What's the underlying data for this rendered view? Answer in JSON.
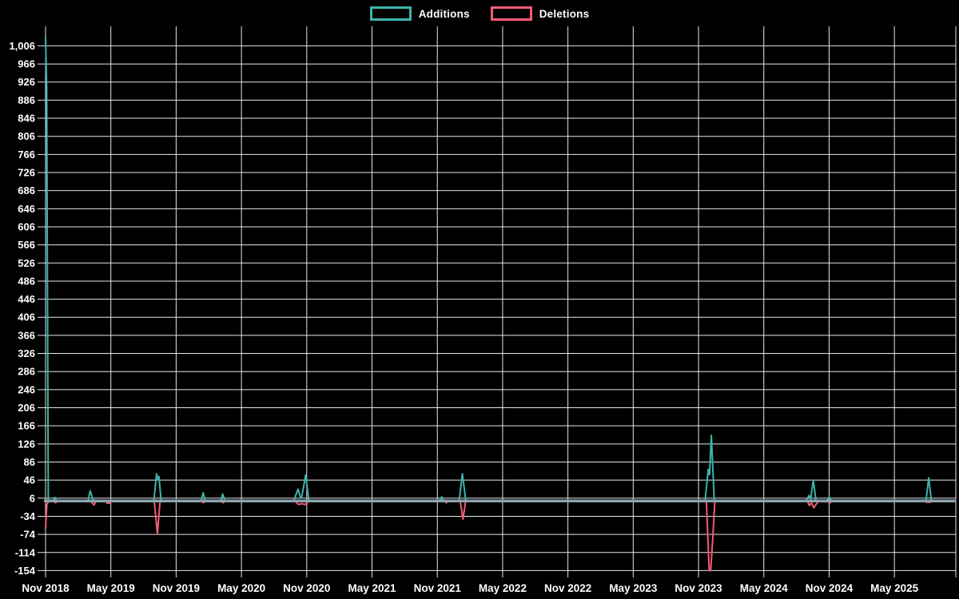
{
  "legend": {
    "items": [
      {
        "label": "Additions",
        "color": "#3cb4ad"
      },
      {
        "label": "Deletions",
        "color": "#f25c77"
      }
    ]
  },
  "chart_data": {
    "type": "line",
    "title": "",
    "background": "#000000",
    "grid": true,
    "grid_color": "#e3e8e8",
    "zero_line_color": "#8ca5af",
    "text_color": "#ffffff",
    "legend_position": "top-center",
    "x_axis": {
      "unit": "months since Nov 2018",
      "tick_months": [
        0,
        6,
        12,
        18,
        24,
        30,
        36,
        42,
        48,
        54,
        60,
        66,
        72,
        78
      ],
      "tick_labels": [
        "Nov 2018",
        "May 2019",
        "Nov 2019",
        "May 2020",
        "Nov 2020",
        "May 2021",
        "Nov 2021",
        "May 2022",
        "Nov 2022",
        "May 2023",
        "Nov 2023",
        "May 2024",
        "Nov 2024",
        "May 2025"
      ],
      "end_month": 83.66
    },
    "y_axis": {
      "min_tick": -154,
      "max_tick": 1006,
      "tick_step": 40,
      "tick_labels": [
        "-154",
        "-114",
        "-74",
        "-34",
        "6",
        "46",
        "86",
        "126",
        "166",
        "206",
        "246",
        "286",
        "326",
        "366",
        "406",
        "446",
        "486",
        "526",
        "566",
        "606",
        "646",
        "686",
        "726",
        "766",
        "806",
        "846",
        "886",
        "926",
        "966",
        "1,006"
      ],
      "data_min": -154,
      "data_max": 1026
    },
    "series": [
      {
        "name": "Additions",
        "color": "#3cb4ad",
        "points": [
          [
            0,
            1026
          ],
          [
            0.1,
            913
          ],
          [
            0.25,
            0
          ],
          [
            0.72,
            0
          ],
          [
            0.85,
            8
          ],
          [
            1.0,
            0
          ],
          [
            3.9,
            0
          ],
          [
            4.1,
            22
          ],
          [
            4.4,
            0
          ],
          [
            9.95,
            0
          ],
          [
            10.2,
            60
          ],
          [
            10.32,
            47
          ],
          [
            10.42,
            54
          ],
          [
            10.62,
            0
          ],
          [
            14.3,
            0
          ],
          [
            14.48,
            18
          ],
          [
            14.68,
            0
          ],
          [
            16.1,
            0
          ],
          [
            16.28,
            15
          ],
          [
            16.48,
            0
          ],
          [
            22.8,
            0
          ],
          [
            23.2,
            26
          ],
          [
            23.45,
            6
          ],
          [
            23.55,
            10
          ],
          [
            23.9,
            57
          ],
          [
            24.2,
            0
          ],
          [
            36.2,
            0
          ],
          [
            36.4,
            9
          ],
          [
            36.6,
            0
          ],
          [
            38.0,
            0
          ],
          [
            38.3,
            60
          ],
          [
            38.62,
            0
          ],
          [
            60.6,
            0
          ],
          [
            60.9,
            70
          ],
          [
            61.02,
            58
          ],
          [
            61.18,
            145
          ],
          [
            61.45,
            0
          ],
          [
            69.9,
            0
          ],
          [
            70.15,
            12
          ],
          [
            70.3,
            4
          ],
          [
            70.55,
            46
          ],
          [
            70.8,
            0
          ],
          [
            71.8,
            0
          ],
          [
            72.0,
            9
          ],
          [
            72.2,
            0
          ],
          [
            80.9,
            0
          ],
          [
            81.15,
            51
          ],
          [
            81.4,
            0
          ],
          [
            83.66,
            0
          ]
        ]
      },
      {
        "name": "Deletions",
        "color": "#f25c77",
        "points": [
          [
            0,
            -60
          ],
          [
            0.12,
            -8
          ],
          [
            0.3,
            0
          ],
          [
            0.78,
            0
          ],
          [
            0.92,
            -4
          ],
          [
            1.08,
            0
          ],
          [
            4.0,
            0
          ],
          [
            4.25,
            -3
          ],
          [
            4.45,
            -9
          ],
          [
            4.65,
            0
          ],
          [
            5.55,
            0
          ],
          [
            5.68,
            -5
          ],
          [
            5.95,
            -5
          ],
          [
            6.05,
            0
          ],
          [
            9.98,
            0
          ],
          [
            10.28,
            -73
          ],
          [
            10.52,
            0
          ],
          [
            14.35,
            0
          ],
          [
            14.5,
            -4
          ],
          [
            14.68,
            0
          ],
          [
            16.15,
            0
          ],
          [
            16.3,
            -4
          ],
          [
            16.5,
            0
          ],
          [
            22.9,
            0
          ],
          [
            23.25,
            -8
          ],
          [
            23.55,
            -6
          ],
          [
            23.85,
            -8
          ],
          [
            24.25,
            0
          ],
          [
            36.65,
            0
          ],
          [
            36.82,
            -4
          ],
          [
            37.0,
            0
          ],
          [
            38.1,
            0
          ],
          [
            38.36,
            -40
          ],
          [
            38.6,
            0
          ],
          [
            60.72,
            0
          ],
          [
            60.98,
            -154
          ],
          [
            61.12,
            -154
          ],
          [
            61.3,
            -85
          ],
          [
            61.5,
            0
          ],
          [
            70.0,
            0
          ],
          [
            70.18,
            -10
          ],
          [
            70.38,
            -4
          ],
          [
            70.6,
            -15
          ],
          [
            70.85,
            -6
          ],
          [
            71.05,
            0
          ],
          [
            71.85,
            0
          ],
          [
            72.05,
            -5
          ],
          [
            72.25,
            0
          ],
          [
            80.85,
            0
          ],
          [
            80.95,
            -3
          ],
          [
            81.3,
            -3
          ],
          [
            81.45,
            0
          ],
          [
            83.66,
            0
          ]
        ]
      }
    ]
  }
}
